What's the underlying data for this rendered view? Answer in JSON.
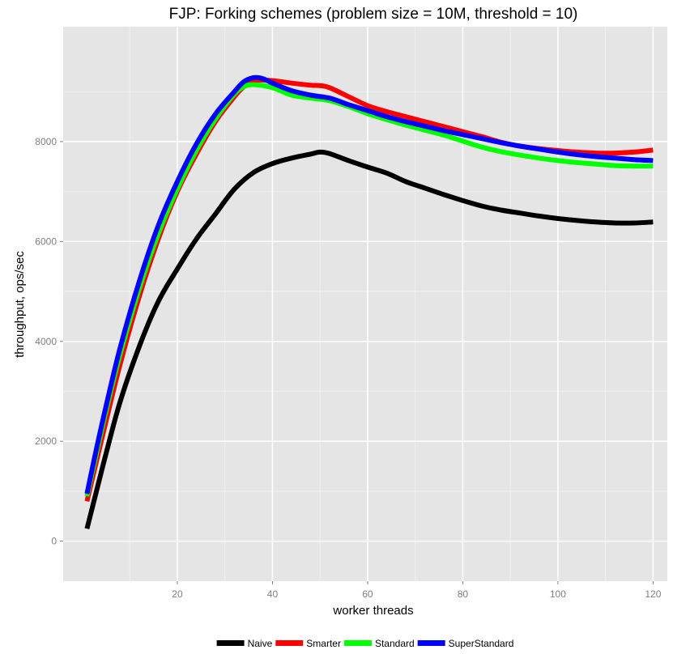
{
  "chart_data": {
    "type": "line",
    "title": "FJP: Forking schemes (problem size = 10M, threshold = 10)",
    "xlabel": "worker threads",
    "ylabel": "throughput, ops/sec",
    "xlim": [
      -4,
      123
    ],
    "ylim": [
      -800,
      10300
    ],
    "xticks": [
      20,
      40,
      60,
      80,
      100,
      120
    ],
    "yticks": [
      0,
      2000,
      4000,
      6000,
      8000
    ],
    "grid": true,
    "legend_position": "bottom",
    "series": [
      {
        "name": "Naive",
        "color": "#000000",
        "points": [
          [
            1,
            250
          ],
          [
            3,
            1000
          ],
          [
            5,
            1750
          ],
          [
            8,
            2800
          ],
          [
            12,
            3900
          ],
          [
            16,
            4800
          ],
          [
            20,
            5450
          ],
          [
            24,
            6050
          ],
          [
            28,
            6550
          ],
          [
            32,
            7050
          ],
          [
            36,
            7380
          ],
          [
            40,
            7560
          ],
          [
            44,
            7670
          ],
          [
            48,
            7750
          ],
          [
            50,
            7790
          ],
          [
            52,
            7760
          ],
          [
            56,
            7620
          ],
          [
            60,
            7490
          ],
          [
            64,
            7370
          ],
          [
            68,
            7200
          ],
          [
            72,
            7070
          ],
          [
            76,
            6940
          ],
          [
            80,
            6820
          ],
          [
            84,
            6710
          ],
          [
            88,
            6630
          ],
          [
            92,
            6570
          ],
          [
            96,
            6510
          ],
          [
            100,
            6460
          ],
          [
            104,
            6420
          ],
          [
            108,
            6390
          ],
          [
            112,
            6370
          ],
          [
            116,
            6370
          ],
          [
            120,
            6390
          ]
        ]
      },
      {
        "name": "Smarter",
        "color": "#ff0000",
        "points": [
          [
            1,
            800
          ],
          [
            3,
            1600
          ],
          [
            5,
            2400
          ],
          [
            8,
            3550
          ],
          [
            12,
            4900
          ],
          [
            16,
            6050
          ],
          [
            20,
            7000
          ],
          [
            24,
            7750
          ],
          [
            28,
            8400
          ],
          [
            32,
            8900
          ],
          [
            34,
            9100
          ],
          [
            36,
            9220
          ],
          [
            40,
            9220
          ],
          [
            44,
            9170
          ],
          [
            48,
            9130
          ],
          [
            50,
            9120
          ],
          [
            52,
            9080
          ],
          [
            56,
            8900
          ],
          [
            60,
            8720
          ],
          [
            64,
            8600
          ],
          [
            68,
            8500
          ],
          [
            72,
            8400
          ],
          [
            76,
            8300
          ],
          [
            80,
            8200
          ],
          [
            84,
            8100
          ],
          [
            88,
            7990
          ],
          [
            92,
            7910
          ],
          [
            96,
            7860
          ],
          [
            100,
            7820
          ],
          [
            104,
            7790
          ],
          [
            108,
            7770
          ],
          [
            112,
            7770
          ],
          [
            116,
            7790
          ],
          [
            120,
            7830
          ]
        ]
      },
      {
        "name": "Standard",
        "color": "#00ff00",
        "points": [
          [
            1,
            900
          ],
          [
            3,
            1750
          ],
          [
            5,
            2600
          ],
          [
            8,
            3750
          ],
          [
            12,
            5050
          ],
          [
            16,
            6150
          ],
          [
            20,
            7050
          ],
          [
            24,
            7820
          ],
          [
            28,
            8450
          ],
          [
            32,
            8950
          ],
          [
            34,
            9100
          ],
          [
            36,
            9140
          ],
          [
            40,
            9080
          ],
          [
            44,
            8930
          ],
          [
            48,
            8870
          ],
          [
            52,
            8820
          ],
          [
            56,
            8700
          ],
          [
            60,
            8560
          ],
          [
            64,
            8440
          ],
          [
            68,
            8330
          ],
          [
            72,
            8230
          ],
          [
            76,
            8130
          ],
          [
            80,
            8010
          ],
          [
            84,
            7890
          ],
          [
            88,
            7800
          ],
          [
            92,
            7730
          ],
          [
            96,
            7670
          ],
          [
            100,
            7620
          ],
          [
            104,
            7580
          ],
          [
            108,
            7550
          ],
          [
            112,
            7520
          ],
          [
            116,
            7510
          ],
          [
            120,
            7510
          ]
        ]
      },
      {
        "name": "SuperStandard",
        "color": "#0000ff",
        "points": [
          [
            1,
            950
          ],
          [
            3,
            1850
          ],
          [
            5,
            2700
          ],
          [
            8,
            3880
          ],
          [
            12,
            5200
          ],
          [
            16,
            6320
          ],
          [
            20,
            7200
          ],
          [
            24,
            7950
          ],
          [
            28,
            8550
          ],
          [
            32,
            9000
          ],
          [
            34,
            9200
          ],
          [
            36,
            9280
          ],
          [
            38,
            9260
          ],
          [
            40,
            9170
          ],
          [
            44,
            9020
          ],
          [
            48,
            8930
          ],
          [
            52,
            8870
          ],
          [
            56,
            8740
          ],
          [
            60,
            8620
          ],
          [
            64,
            8500
          ],
          [
            68,
            8400
          ],
          [
            72,
            8310
          ],
          [
            76,
            8220
          ],
          [
            80,
            8140
          ],
          [
            84,
            8060
          ],
          [
            88,
            7980
          ],
          [
            92,
            7910
          ],
          [
            96,
            7850
          ],
          [
            100,
            7790
          ],
          [
            104,
            7740
          ],
          [
            108,
            7700
          ],
          [
            112,
            7670
          ],
          [
            116,
            7640
          ],
          [
            120,
            7620
          ]
        ]
      }
    ]
  }
}
